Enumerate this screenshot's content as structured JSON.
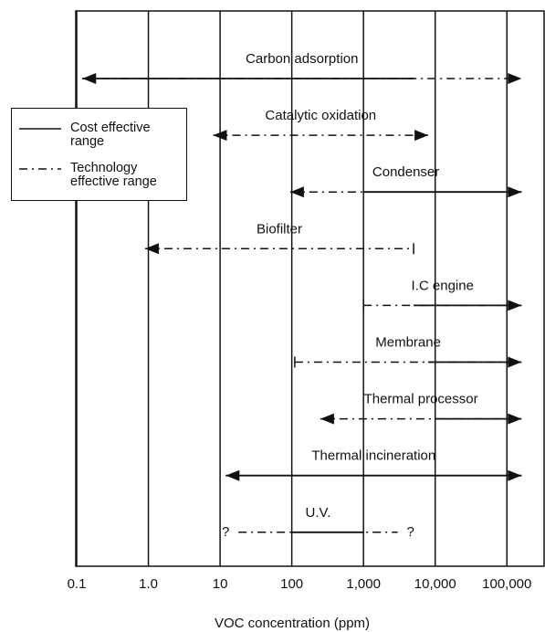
{
  "chart_data": {
    "type": "range",
    "x_label": "VOC concentration (ppm)",
    "xscale": "log",
    "xlim": [
      0.1,
      330000
    ],
    "xticks": [
      0.1,
      {
        "value": 1,
        "label": "1.0"
      },
      10,
      100,
      {
        "value": 1000,
        "label": "1,000"
      },
      {
        "value": 10000,
        "label": "10,000"
      },
      {
        "value": 100000,
        "label": "100,000"
      }
    ],
    "grid": true,
    "color": "#111111",
    "legend": {
      "position": "upper left",
      "entries": [
        {
          "label": "Cost effective range",
          "style": "solid"
        },
        {
          "label": "Technology effective range",
          "style": "dashed"
        }
      ]
    },
    "items": [
      {
        "name": "Carbon adsorption",
        "tech": [
          0.12,
          160000
        ],
        "cost": [
          0.12,
          5000
        ],
        "ends": [
          "arrow",
          "arrow"
        ]
      },
      {
        "name": "Catalytic oxidation",
        "tech": [
          8,
          8000
        ],
        "cost": null,
        "ends": [
          "arrow",
          "arrow"
        ]
      },
      {
        "name": "Condenser",
        "tech": [
          95,
          160000
        ],
        "cost": [
          1000,
          160000
        ],
        "ends": [
          "arrow",
          "arrow"
        ]
      },
      {
        "name": "Biofilter",
        "tech": [
          0.9,
          5000
        ],
        "cost": null,
        "ends": [
          "arrow",
          "bar"
        ]
      },
      {
        "name": "I.C engine",
        "tech": [
          1000,
          160000
        ],
        "cost": [
          5000,
          160000
        ],
        "ends": [
          "bar",
          "arrow"
        ]
      },
      {
        "name": "Membrane",
        "tech": [
          110,
          160000
        ],
        "cost": [
          8000,
          160000
        ],
        "ends": [
          "bar",
          "arrow"
        ]
      },
      {
        "name": "Thermal processor",
        "tech": [
          250,
          160000
        ],
        "cost": [
          10000,
          160000
        ],
        "ends": [
          "arrow",
          "arrow"
        ]
      },
      {
        "name": "Thermal incineration",
        "tech": [
          12,
          160000
        ],
        "cost": [
          12,
          160000
        ],
        "ends": [
          "arrow",
          "arrow"
        ]
      },
      {
        "name": "U.V.",
        "tech": [
          18,
          3000
        ],
        "cost": [
          100,
          1000
        ],
        "ends": [
          "none",
          "none"
        ],
        "end_labels": [
          "?",
          "?"
        ]
      }
    ]
  }
}
